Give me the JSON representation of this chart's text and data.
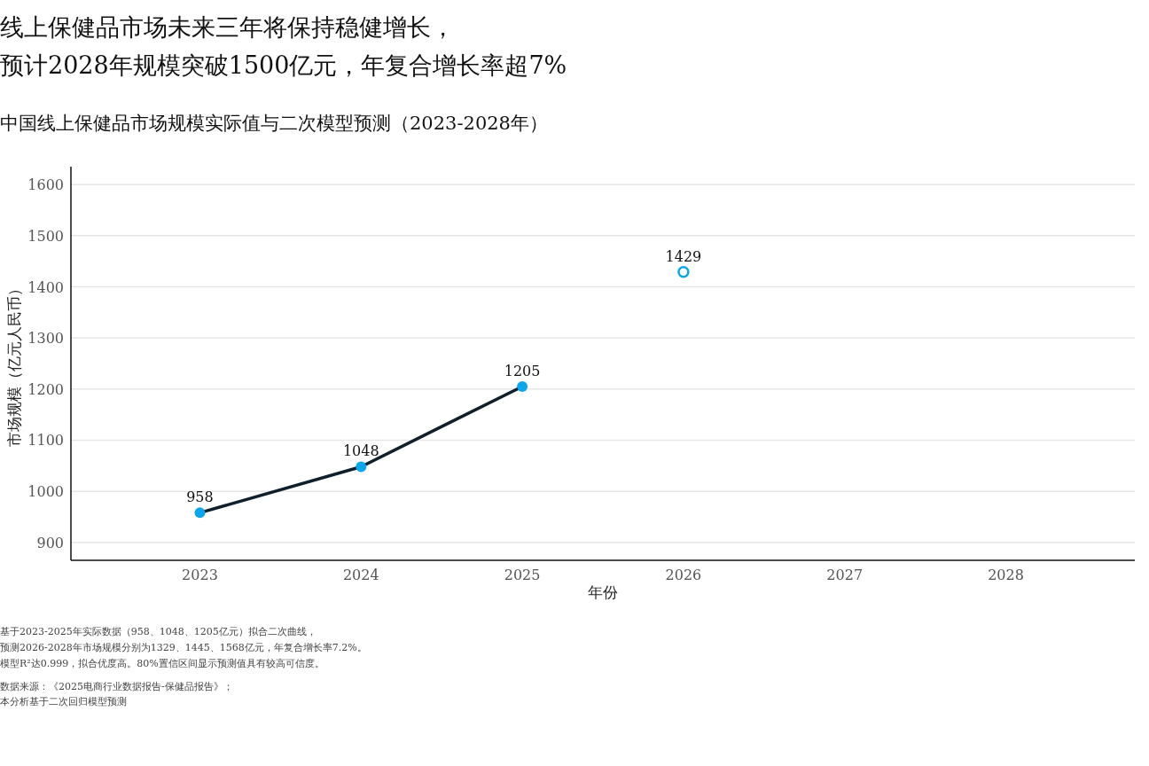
{
  "chart_data": {
    "type": "line",
    "title": "线上保健品市场未来三年将保持稳健增长，预计2028年规模突破1500亿元，年复合增长率超7%",
    "subtitle": "中国线上保健品市场规模实际值与二次模型预测（2023-2028年）",
    "xlabel": "年份",
    "ylabel": "市场规模（亿元人民币）",
    "categories": [
      "2023",
      "2024",
      "2025",
      "2026",
      "2027",
      "2028"
    ],
    "series": [
      {
        "color": "#0f1f2c",
        "colors": [
          "#0ea5e9",
          "#0ea5e9",
          "#0ea5e9",
          null,
          null,
          null
        ],
        "marker": "circle",
        "values": [
          958,
          1048,
          1205,
          null,
          null,
          null
        ]
      },
      {
        "type": "scatter",
        "color": "#0ea5e9",
        "marker": "circle",
        "values": [
          null,
          null,
          null,
          1429,
          null,
          null
        ]
      }
    ],
    "ylim": [
      865,
      1635
    ],
    "yticks": [
      900,
      1000,
      1100,
      1200,
      1300,
      1400,
      1500,
      1600
    ],
    "grid": "y",
    "data_labels": true,
    "annotations": [
      "基于2023-2025年实际数据（958、1048、1205亿元）拟合二次曲线，",
      "预测2026-2028年市场规模分别为1329、1445、1568亿元，年复合增长率7.2%。",
      "模型R²达0.999，拟合优度高。80%置信区间显示预测值具有较高可信度。",
      "数据来源：《2025电商行业数据报告-保健品报告》；",
      "本分析基于二次回归模型预测"
    ]
  }
}
